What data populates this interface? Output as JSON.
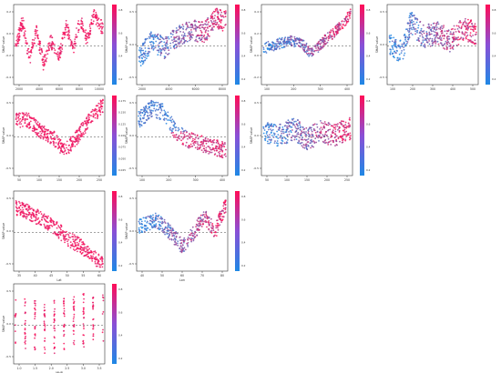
{
  "figure": {
    "description": "grid of SHAP dependence scatter plots with colorbars"
  },
  "chart_data": [
    {
      "type": "scatter",
      "row": 1,
      "col": 1,
      "ylabel": "SHAP value",
      "xlabel": "",
      "xticks": [
        "2000",
        "4000",
        "6000",
        "8000",
        "10000"
      ],
      "yticks": [
        "-0.4",
        "-0.2",
        "0.0",
        "0.2"
      ],
      "colorbar_ticks": [
        "0.8",
        "0.6",
        "0.4",
        "0.2"
      ],
      "color_mode": "red",
      "trend": [
        [
          0,
          0.55
        ],
        [
          0.08,
          0.2
        ],
        [
          0.16,
          0.7
        ],
        [
          0.24,
          0.3
        ],
        [
          0.32,
          0.75
        ],
        [
          0.4,
          0.45
        ],
        [
          0.5,
          0.65
        ],
        [
          0.58,
          0.25
        ],
        [
          0.66,
          0.55
        ],
        [
          0.74,
          0.15
        ],
        [
          0.82,
          0.45
        ],
        [
          0.9,
          0.1
        ],
        [
          1,
          0.3
        ]
      ],
      "spread": 0.18,
      "points": 420,
      "seed": 11
    },
    {
      "type": "scatter",
      "row": 1,
      "col": 2,
      "ylabel": "SHAP value",
      "xlabel": "",
      "xticks": [
        "2000",
        "4000",
        "6000",
        "8000"
      ],
      "yticks": [
        "-0.5",
        "0.0",
        "0.5"
      ],
      "colorbar_ticks": [
        "0.8",
        "0.6",
        "0.4",
        "0.2"
      ],
      "color_mode": "mixed",
      "trend": [
        [
          0,
          0.7
        ],
        [
          0.15,
          0.45
        ],
        [
          0.3,
          0.55
        ],
        [
          0.45,
          0.4
        ],
        [
          0.6,
          0.3
        ],
        [
          0.75,
          0.35
        ],
        [
          0.9,
          0.15
        ],
        [
          1,
          0.2
        ]
      ],
      "spread": 0.28,
      "points": 480,
      "seed": 23
    },
    {
      "type": "scatter",
      "row": 1,
      "col": 3,
      "ylabel": "SHAP value",
      "xlabel": "",
      "xticks": [
        "100",
        "200",
        "300",
        "400"
      ],
      "yticks": [
        "-0.2",
        "0.0",
        "0.2",
        "0.4"
      ],
      "colorbar_ticks": [
        "0.8",
        "0.6",
        "0.4",
        "0.2"
      ],
      "color_mode": "mixed",
      "trend": [
        [
          0,
          0.55
        ],
        [
          0.15,
          0.5
        ],
        [
          0.3,
          0.45
        ],
        [
          0.45,
          0.5
        ],
        [
          0.55,
          0.62
        ],
        [
          0.7,
          0.45
        ],
        [
          0.85,
          0.3
        ],
        [
          1,
          0.1
        ]
      ],
      "spread": 0.14,
      "points": 420,
      "seed": 37
    },
    {
      "type": "scatter",
      "row": 1,
      "col": 4,
      "ylabel": "SHAP value",
      "xlabel": "",
      "xticks": [
        "100",
        "200",
        "300",
        "400",
        "500"
      ],
      "yticks": [
        "-0.5",
        "0.0",
        "0.5"
      ],
      "colorbar_ticks": [
        "0.8",
        "0.6",
        "0.4",
        "0.2"
      ],
      "color_mode": "mixed",
      "trend": [
        [
          0,
          0.5
        ],
        [
          0.15,
          0.6
        ],
        [
          0.25,
          0.2
        ],
        [
          0.4,
          0.4
        ],
        [
          0.55,
          0.35
        ],
        [
          0.7,
          0.45
        ],
        [
          0.85,
          0.3
        ],
        [
          1,
          0.35
        ]
      ],
      "spread": 0.3,
      "points": 480,
      "seed": 41
    },
    {
      "type": "scatter",
      "row": 2,
      "col": 1,
      "ylabel": "SHAP value",
      "xlabel": "",
      "xticks": [
        "50",
        "100",
        "150",
        "200",
        "250"
      ],
      "yticks": [
        "-0.5",
        "0.0",
        "0.5"
      ],
      "colorbar_ticks": [
        "0.175",
        "0.150",
        "0.125",
        "0.100",
        "0.075",
        "0.050",
        "0.025"
      ],
      "color_mode": "red",
      "trend": [
        [
          0,
          0.3
        ],
        [
          0.15,
          0.3
        ],
        [
          0.3,
          0.45
        ],
        [
          0.45,
          0.55
        ],
        [
          0.55,
          0.7
        ],
        [
          0.65,
          0.6
        ],
        [
          0.75,
          0.45
        ],
        [
          0.88,
          0.25
        ],
        [
          1,
          0.1
        ]
      ],
      "spread": 0.2,
      "points": 440,
      "seed": 53
    },
    {
      "type": "scatter",
      "row": 2,
      "col": 2,
      "ylabel": "SHAP value",
      "xlabel": "",
      "xticks": [
        "100",
        "200",
        "300",
        "400"
      ],
      "yticks": [
        "-0.5",
        "0.0",
        "0.5"
      ],
      "colorbar_ticks": [
        "0.8",
        "0.6",
        "0.4",
        "0.2"
      ],
      "color_mode": "split",
      "trend": [
        [
          0,
          0.3
        ],
        [
          0.15,
          0.15
        ],
        [
          0.3,
          0.2
        ],
        [
          0.42,
          0.45
        ],
        [
          0.55,
          0.55
        ],
        [
          0.7,
          0.6
        ],
        [
          0.85,
          0.65
        ],
        [
          1,
          0.7
        ]
      ],
      "spread": 0.22,
      "points": 380,
      "seed": 67
    },
    {
      "type": "scatter",
      "row": 2,
      "col": 3,
      "ylabel": "SHAP value",
      "xlabel": "",
      "xticks": [
        "50",
        "100",
        "150",
        "200",
        "250"
      ],
      "yticks": [
        "-0.5",
        "0.0",
        "0.5"
      ],
      "colorbar_ticks": [
        "0.8",
        "0.6",
        "0.4",
        "0.2"
      ],
      "color_mode": "mixed",
      "trend": [
        [
          0,
          0.45
        ],
        [
          0.2,
          0.5
        ],
        [
          0.35,
          0.4
        ],
        [
          0.5,
          0.55
        ],
        [
          0.65,
          0.45
        ],
        [
          0.8,
          0.5
        ],
        [
          1,
          0.4
        ]
      ],
      "spread": 0.3,
      "points": 460,
      "seed": 79
    },
    {
      "type": "scatter",
      "row": 3,
      "col": 1,
      "ylabel": "SHAP value",
      "xlabel": "Lat",
      "xticks": [
        "35",
        "40",
        "45",
        "50",
        "55",
        "60"
      ],
      "yticks": [
        "-0.5",
        "0.0",
        "0.5"
      ],
      "colorbar_ticks": [
        "0.8",
        "0.6",
        "0.4",
        "0.2"
      ],
      "color_mode": "red",
      "trend": [
        [
          0,
          0.2
        ],
        [
          0.15,
          0.25
        ],
        [
          0.3,
          0.35
        ],
        [
          0.45,
          0.45
        ],
        [
          0.6,
          0.6
        ],
        [
          0.75,
          0.7
        ],
        [
          0.9,
          0.85
        ],
        [
          1,
          0.9
        ]
      ],
      "spread": 0.2,
      "points": 420,
      "seed": 83
    },
    {
      "type": "scatter",
      "row": 3,
      "col": 2,
      "ylabel": "SHAP value",
      "xlabel": "Lon",
      "xticks": [
        "40",
        "50",
        "60",
        "70",
        "80"
      ],
      "yticks": [
        "-0.5",
        "0.0",
        "0.5"
      ],
      "colorbar_ticks": [
        "0.8",
        "0.6",
        "0.4",
        "0.2"
      ],
      "color_mode": "mixed",
      "trend": [
        [
          0,
          0.45
        ],
        [
          0.2,
          0.35
        ],
        [
          0.35,
          0.5
        ],
        [
          0.5,
          0.7
        ],
        [
          0.62,
          0.55
        ],
        [
          0.75,
          0.3
        ],
        [
          0.88,
          0.5
        ],
        [
          1,
          0.15
        ]
      ],
      "spread": 0.2,
      "points": 420,
      "seed": 97
    },
    {
      "type": "scatter",
      "row": 4,
      "col": 1,
      "ylabel": "SHAP value",
      "xlabel": "MHP",
      "xticks": [
        "1.0",
        "1.5",
        "2.0",
        "2.5",
        "3.0",
        "3.5"
      ],
      "yticks": [
        "-0.5",
        "0.0",
        "0.5"
      ],
      "colorbar_ticks": [
        "0.8",
        "0.6",
        "0.4",
        "0.2"
      ],
      "color_mode": "red",
      "trend": [
        [
          0,
          0.45
        ],
        [
          0.2,
          0.5
        ],
        [
          0.4,
          0.55
        ],
        [
          0.6,
          0.5
        ],
        [
          0.8,
          0.45
        ],
        [
          1,
          0.4
        ]
      ],
      "spread": 0.35,
      "points": 220,
      "seed": 101,
      "columns": true
    }
  ]
}
